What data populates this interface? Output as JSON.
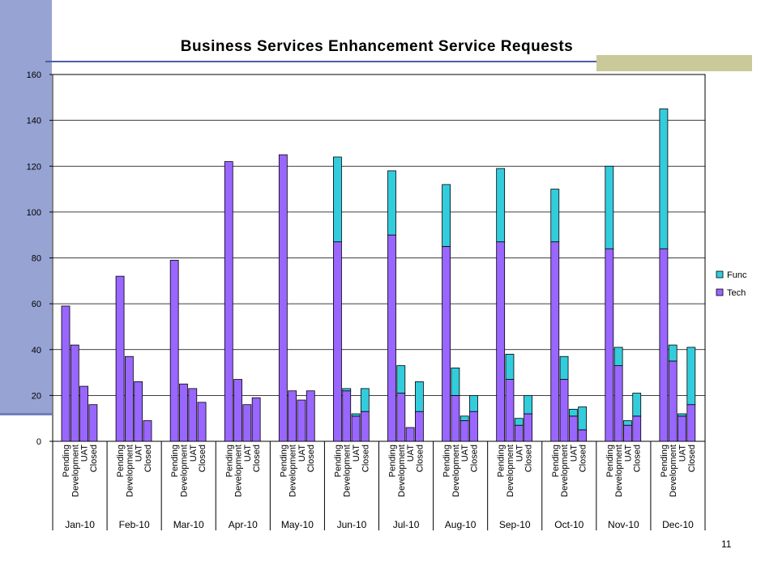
{
  "slide": {
    "page_number": "11"
  },
  "chart_data": {
    "type": "bar",
    "stacked": true,
    "title": "Business Services Enhancement Service Requests",
    "xlabel": "",
    "ylabel": "",
    "ylim": [
      0,
      160
    ],
    "yticks": [
      0,
      20,
      40,
      60,
      80,
      100,
      120,
      140,
      160
    ],
    "grid": true,
    "legend_position": "right",
    "statuses": [
      "Pending",
      "Development",
      "UAT",
      "Closed"
    ],
    "months": [
      "Jan-10",
      "Feb-10",
      "Mar-10",
      "Apr-10",
      "May-10",
      "Jun-10",
      "Jul-10",
      "Aug-10",
      "Sep-10",
      "Oct-10",
      "Nov-10",
      "Dec-10"
    ],
    "series": [
      {
        "name": "Tech",
        "color": "#9966ff",
        "values": [
          [
            59,
            42,
            24,
            16
          ],
          [
            72,
            37,
            26,
            9
          ],
          [
            79,
            25,
            23,
            17
          ],
          [
            122,
            27,
            16,
            19
          ],
          [
            125,
            22,
            18,
            22
          ],
          [
            87,
            22,
            11,
            13
          ],
          [
            90,
            21,
            6,
            13
          ],
          [
            85,
            20,
            9,
            13
          ],
          [
            87,
            27,
            7,
            12
          ],
          [
            87,
            27,
            11,
            5
          ],
          [
            84,
            33,
            7,
            11
          ],
          [
            84,
            35,
            11,
            16
          ]
        ]
      },
      {
        "name": "Func",
        "color": "#33ccdd",
        "values": [
          [
            0,
            0,
            0,
            0
          ],
          [
            0,
            0,
            0,
            0
          ],
          [
            0,
            0,
            0,
            0
          ],
          [
            0,
            0,
            0,
            0
          ],
          [
            0,
            0,
            0,
            0
          ],
          [
            37,
            1,
            1,
            10
          ],
          [
            28,
            12,
            0,
            13
          ],
          [
            27,
            12,
            2,
            7
          ],
          [
            32,
            11,
            3,
            8
          ],
          [
            23,
            10,
            3,
            10
          ],
          [
            36,
            8,
            2,
            10
          ],
          [
            61,
            7,
            1,
            25
          ]
        ]
      }
    ]
  }
}
